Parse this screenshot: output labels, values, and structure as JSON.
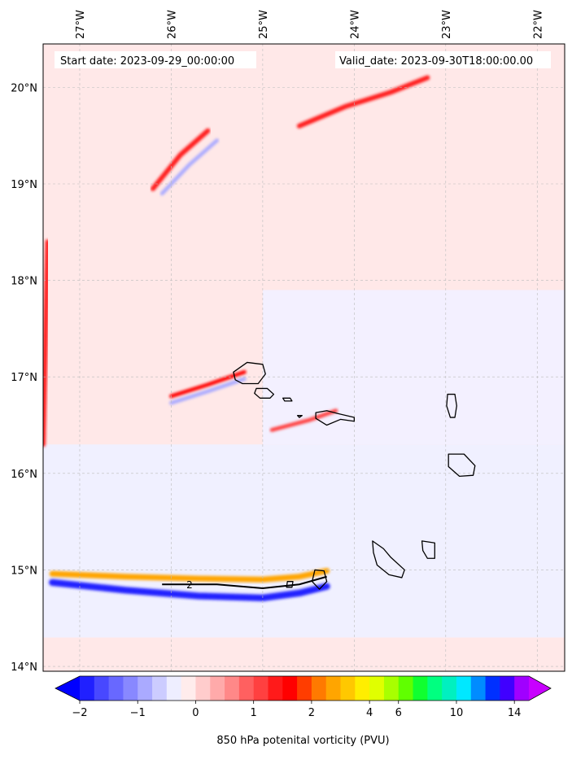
{
  "chart_data": {
    "type": "heatmap",
    "title": "",
    "start_label": "Start date: 2023-09-29_00:00:00",
    "valid_label": "Valid_date: 2023-09-30T18:00:00.00",
    "lon_range": [
      -27.4,
      -21.7
    ],
    "lat_range": [
      13.95,
      20.45
    ],
    "lon_ticks": [
      {
        "value": -27,
        "label": "27°W"
      },
      {
        "value": -26,
        "label": "26°W"
      },
      {
        "value": -25,
        "label": "25°W"
      },
      {
        "value": -24,
        "label": "24°W"
      },
      {
        "value": -23,
        "label": "23°W"
      },
      {
        "value": -22,
        "label": "22°W"
      }
    ],
    "lat_ticks": [
      {
        "value": 14,
        "label": "14°N"
      },
      {
        "value": 15,
        "label": "15°N"
      },
      {
        "value": 16,
        "label": "16°N"
      },
      {
        "value": 17,
        "label": "17°N"
      },
      {
        "value": 18,
        "label": "18°N"
      },
      {
        "value": 19,
        "label": "19°N"
      },
      {
        "value": 20,
        "label": "20°N"
      }
    ],
    "grid": true,
    "contour_label": "2",
    "colorbar": {
      "label": "850 hPa potenital vorticity (PVU)",
      "levels": [
        -2,
        -1.75,
        -1.5,
        -1.25,
        -1,
        -0.75,
        -0.5,
        -0.25,
        0,
        0.25,
        0.5,
        0.75,
        1,
        1.25,
        1.5,
        1.75,
        2,
        2.5,
        3,
        3.5,
        4,
        5,
        6,
        7,
        8,
        9,
        10,
        11,
        12,
        13,
        14,
        15
      ],
      "colors": [
        "#0000ff",
        "#2020ff",
        "#4848ff",
        "#6868ff",
        "#8888ff",
        "#aaaaff",
        "#ccccff",
        "#eeeeff",
        "#ffecec",
        "#ffcccc",
        "#ffaaaa",
        "#ff8888",
        "#ff6060",
        "#ff4040",
        "#ff1a1a",
        "#ff0000",
        "#ff3d00",
        "#ff7a00",
        "#ffa500",
        "#ffc800",
        "#ffee00",
        "#e0ff00",
        "#a8ff00",
        "#60ff00",
        "#10ff30",
        "#00ff80",
        "#00f0c0",
        "#00e8ff",
        "#008cff",
        "#0030ff",
        "#4000ff",
        "#a000ff",
        "#c800ff"
      ],
      "tick_values": [
        -2,
        -1,
        0,
        1,
        2,
        4,
        6,
        10,
        14
      ],
      "tick_labels": [
        "−2",
        "−1",
        "0",
        "1",
        "2",
        "4",
        "6",
        "10",
        "14"
      ]
    },
    "features": [
      {
        "name": "pv-band-positive",
        "lon": [
          -27.3,
          -26.5,
          -25.7,
          -25.0,
          -24.6,
          -24.3
        ],
        "lat": [
          14.96,
          14.93,
          14.91,
          14.9,
          14.93,
          14.99
        ],
        "width_deg": 0.06,
        "pv": 2.5
      },
      {
        "name": "pv-band-negative",
        "lon": [
          -27.3,
          -26.5,
          -25.7,
          -25.0,
          -24.6,
          -24.3
        ],
        "lat": [
          14.87,
          14.79,
          14.73,
          14.71,
          14.76,
          14.83
        ],
        "width_deg": 0.07,
        "pv": -2
      },
      {
        "name": "pv-streak-north",
        "lon": [
          -24.6,
          -24.1,
          -23.6,
          -23.2
        ],
        "lat": [
          19.6,
          19.8,
          19.95,
          20.1
        ],
        "width_deg": 0.05,
        "pv": 1.3
      },
      {
        "name": "pv-streak-nw-pos",
        "lon": [
          -26.2,
          -25.9,
          -25.6
        ],
        "lat": [
          18.95,
          19.3,
          19.55
        ],
        "width_deg": 0.05,
        "pv": 1.3
      },
      {
        "name": "pv-streak-nw-neg",
        "lon": [
          -26.1,
          -25.8,
          -25.5
        ],
        "lat": [
          18.9,
          19.2,
          19.45
        ],
        "width_deg": 0.04,
        "pv": -0.8
      },
      {
        "name": "pv-streak-mid-pos",
        "lon": [
          -26.0,
          -25.6,
          -25.2
        ],
        "lat": [
          16.8,
          16.92,
          17.05
        ],
        "width_deg": 0.04,
        "pv": 1.5
      },
      {
        "name": "pv-streak-mid-neg",
        "lon": [
          -26.0,
          -25.6,
          -25.2
        ],
        "lat": [
          16.73,
          16.85,
          16.98
        ],
        "width_deg": 0.04,
        "pv": -0.8
      },
      {
        "name": "pv-streak-east",
        "lon": [
          -24.9,
          -24.5,
          -24.2
        ],
        "lat": [
          16.45,
          16.55,
          16.65
        ],
        "width_deg": 0.04,
        "pv": 1.2
      },
      {
        "name": "pv-west-edge",
        "lon": [
          -27.4,
          -27.35
        ],
        "lat": [
          16.3,
          18.4
        ],
        "width_deg": 0.05,
        "pv": 1.3
      }
    ],
    "islands": [
      {
        "name": "Santo Antão",
        "lon": [
          -25.32,
          -25.17,
          -25.0,
          -24.97,
          -25.05,
          -25.22,
          -25.3
        ],
        "lat": [
          17.05,
          17.15,
          17.13,
          17.03,
          16.93,
          16.93,
          16.97
        ]
      },
      {
        "name": "São Vicente",
        "lon": [
          -25.07,
          -24.95,
          -24.88,
          -24.92,
          -25.03,
          -25.09
        ],
        "lat": [
          16.88,
          16.88,
          16.82,
          16.78,
          16.78,
          16.83
        ]
      },
      {
        "name": "Santa Luzia",
        "lon": [
          -24.78,
          -24.7,
          -24.68,
          -24.76
        ],
        "lat": [
          16.78,
          16.78,
          16.75,
          16.75
        ]
      },
      {
        "name": "São Nicolau",
        "lon": [
          -24.42,
          -24.3,
          -24.18,
          -24.0,
          -24.0,
          -24.15,
          -24.3,
          -24.42
        ],
        "lat": [
          16.63,
          16.65,
          16.62,
          16.58,
          16.54,
          16.56,
          16.5,
          16.57
        ]
      },
      {
        "name": "Raso",
        "lon": [
          -24.62,
          -24.57,
          -24.6
        ],
        "lat": [
          16.6,
          16.6,
          16.58
        ]
      },
      {
        "name": "Sal",
        "lon": [
          -22.98,
          -22.9,
          -22.88,
          -22.9,
          -22.95,
          -22.99
        ],
        "lat": [
          16.82,
          16.82,
          16.7,
          16.58,
          16.58,
          16.7
        ]
      },
      {
        "name": "Boa Vista",
        "lon": [
          -22.97,
          -22.8,
          -22.68,
          -22.7,
          -22.85,
          -22.97
        ],
        "lat": [
          16.2,
          16.2,
          16.08,
          15.98,
          15.97,
          16.07
        ]
      },
      {
        "name": "Maio",
        "lon": [
          -23.26,
          -23.12,
          -23.12,
          -23.2,
          -23.25
        ],
        "lat": [
          15.3,
          15.28,
          15.12,
          15.12,
          15.2
        ]
      },
      {
        "name": "Santiago",
        "lon": [
          -23.8,
          -23.68,
          -23.6,
          -23.45,
          -23.48,
          -23.62,
          -23.75,
          -23.79
        ],
        "lat": [
          15.3,
          15.22,
          15.13,
          15.0,
          14.92,
          14.95,
          15.05,
          15.18
        ]
      },
      {
        "name": "Fogo",
        "lon": [
          -24.43,
          -24.33,
          -24.3,
          -24.38,
          -24.46
        ],
        "lat": [
          15.0,
          14.99,
          14.88,
          14.8,
          14.88
        ]
      },
      {
        "name": "Brava",
        "lon": [
          -24.73,
          -24.67,
          -24.68,
          -24.74
        ],
        "lat": [
          14.88,
          14.88,
          14.82,
          14.82
        ]
      }
    ],
    "contour": {
      "lon": [
        -26.1,
        -25.5,
        -25.0,
        -24.6,
        -24.3
      ],
      "lat": [
        14.85,
        14.85,
        14.81,
        14.85,
        14.93
      ]
    }
  }
}
